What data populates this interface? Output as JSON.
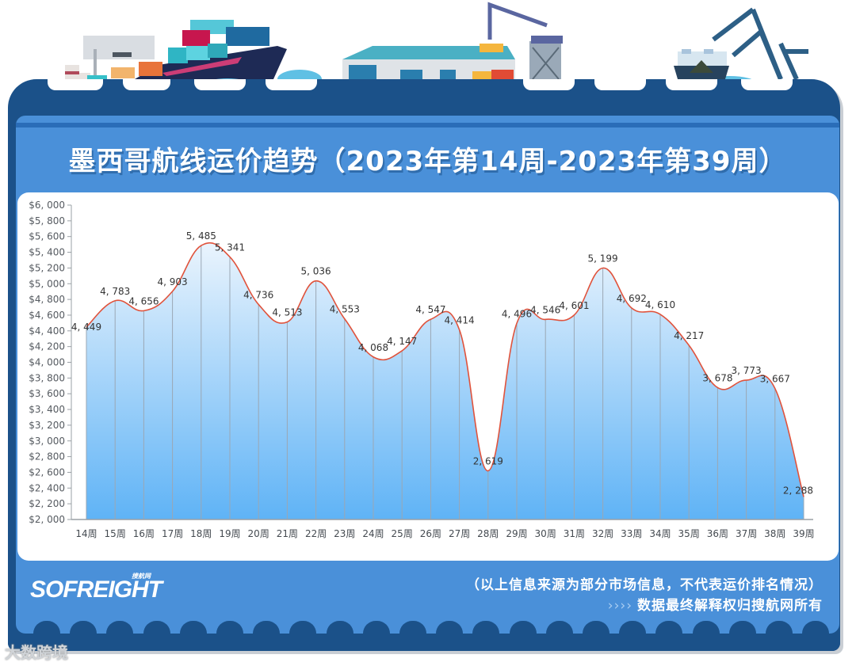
{
  "header": {
    "title": "墨西哥航线运价趋势（2023年第14周-2023年第39周）"
  },
  "footer": {
    "logo_text": "SOFREIGHT",
    "logo_sub": "搜航网",
    "note_line1": "（以上信息来源为部分市场信息，不代表运价排名情况）",
    "note_arrows": "››››",
    "note_line2": "数据最终解释权归搜航网所有",
    "source_watermark": "大数跨境"
  },
  "colors": {
    "frame_dark": "#1b5189",
    "card_blue": "#4a90d9",
    "line_red": "#e0533c",
    "area_top": "#e8f3fd",
    "area_bottom": "#5fb3f6"
  },
  "chart_data": {
    "type": "area",
    "title": "墨西哥航线运价趋势（2023年第14周-2023年第39周）",
    "xlabel": "",
    "ylabel": "",
    "categories": [
      "14周",
      "15周",
      "16周",
      "17周",
      "18周",
      "19周",
      "20周",
      "21周",
      "22周",
      "23周",
      "24周",
      "25周",
      "26周",
      "27周",
      "28周",
      "29周",
      "30周",
      "31周",
      "32周",
      "33周",
      "34周",
      "35周",
      "36周",
      "37周",
      "38周",
      "39周"
    ],
    "values": [
      4449,
      4783,
      4656,
      4903,
      5485,
      5341,
      4736,
      4513,
      5036,
      4553,
      4068,
      4147,
      4547,
      4414,
      2619,
      4496,
      4546,
      4601,
      5199,
      4692,
      4610,
      4217,
      3678,
      3773,
      3667,
      2288
    ],
    "value_labels": [
      "4, 449",
      "4, 783",
      "4, 656",
      "4, 903",
      "5, 485",
      "5, 341",
      "4, 736",
      "4, 513",
      "5, 036",
      "4, 553",
      "4, 068",
      "4, 147",
      "4, 547",
      "4, 414",
      "2, 619",
      "4, 496",
      "4, 546",
      "4, 601",
      "5, 199",
      "4, 692",
      "4, 610",
      "4, 217",
      "3, 678",
      "3, 773",
      "3, 667",
      "2, 288"
    ],
    "ylim": [
      2000,
      6000
    ],
    "yticks": [
      2000,
      2200,
      2400,
      2600,
      2800,
      3000,
      3200,
      3400,
      3600,
      3800,
      4000,
      4200,
      4400,
      4600,
      4800,
      5000,
      5200,
      5400,
      5600,
      5800,
      6000
    ],
    "ytick_labels": [
      "$2, 000",
      "$2, 200",
      "$2, 400",
      "$2, 600",
      "$2, 800",
      "$3, 000",
      "$3, 200",
      "$3, 400",
      "$3, 600",
      "$3, 800",
      "$4, 000",
      "$4, 200",
      "$4, 400",
      "$4, 600",
      "$4, 800",
      "$5, 000",
      "$5, 200",
      "$5, 400",
      "$5, 600",
      "$5, 800",
      "$6, 000"
    ],
    "grid": "vertical drop lines at each point",
    "legend": "none",
    "smooth": true
  }
}
